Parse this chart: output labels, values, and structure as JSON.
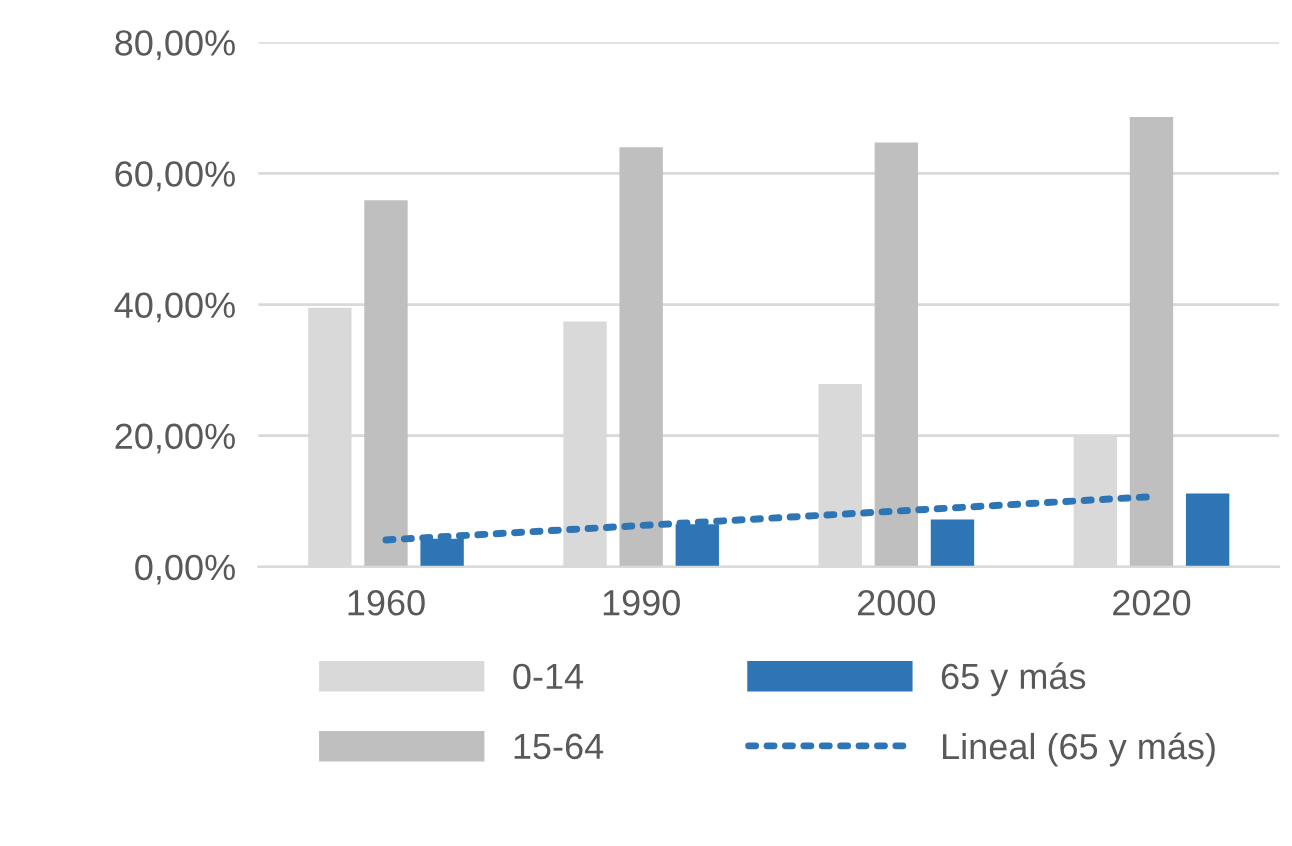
{
  "chart_data": {
    "type": "bar",
    "categories": [
      "1960",
      "1990",
      "2000",
      "2020"
    ],
    "series": [
      {
        "name": "0-14",
        "color": "#d9d9d9",
        "values": [
          39.5,
          37.4,
          27.9,
          19.9
        ]
      },
      {
        "name": "15-64",
        "color": "#bfbfbf",
        "values": [
          55.9,
          64.0,
          64.7,
          68.6
        ]
      },
      {
        "name": "65 y más",
        "color": "#2e75b6",
        "values": [
          4.3,
          6.5,
          7.2,
          11.2
        ]
      },
      {
        "name": "Lineal (65 y más)",
        "color": "#2e75b6",
        "type": "line",
        "line_style": "dotted",
        "values": [
          4.1,
          6.3,
          8.5,
          10.7
        ]
      }
    ],
    "ylim": [
      0,
      80
    ],
    "yticks": [
      {
        "value": 0,
        "label": "0,00%"
      },
      {
        "value": 20,
        "label": "20,00%"
      },
      {
        "value": 40,
        "label": "40,00%"
      },
      {
        "value": 60,
        "label": "60,00%"
      },
      {
        "value": 80,
        "label": "80,00%"
      }
    ],
    "grid": "y",
    "legend": "bottom"
  }
}
